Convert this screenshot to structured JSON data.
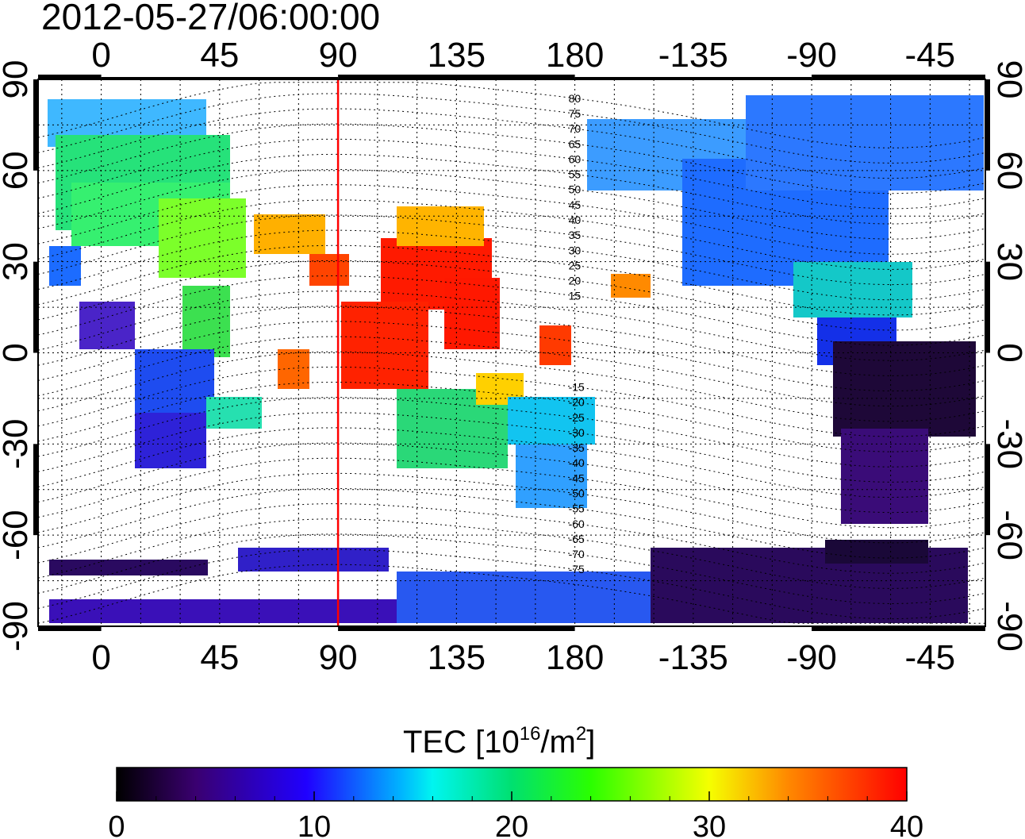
{
  "title": "2012-05-27/06:00:00",
  "map": {
    "projection": "equirectangular",
    "lon_range": [
      -24,
      336
    ],
    "lat_range": [
      -90,
      90
    ],
    "x_ticks": [
      {
        "lon": 0,
        "label": "0"
      },
      {
        "lon": 45,
        "label": "45"
      },
      {
        "lon": 90,
        "label": "90"
      },
      {
        "lon": 135,
        "label": "135"
      },
      {
        "lon": 180,
        "label": "180"
      },
      {
        "lon": 225,
        "label": "-135"
      },
      {
        "lon": 270,
        "label": "-90"
      },
      {
        "lon": 315,
        "label": "-45"
      }
    ],
    "y_ticks": [
      {
        "lat": 90,
        "label": "90"
      },
      {
        "lat": 60,
        "label": "60"
      },
      {
        "lat": 30,
        "label": "30"
      },
      {
        "lat": 0,
        "label": "0"
      },
      {
        "lat": -30,
        "label": "-30"
      },
      {
        "lat": -60,
        "label": "-60"
      },
      {
        "lat": -90,
        "label": "-90"
      }
    ],
    "grid": "dotted, 15 degree",
    "marker_line_lon": 90,
    "marker_line_color": "#ff0000",
    "magnetic_latitude_labels": [
      "80",
      "75",
      "70",
      "65",
      "60",
      "55",
      "50",
      "45",
      "40",
      "35",
      "30",
      "25",
      "20",
      "15",
      "-15",
      "-20",
      "-25",
      "-30",
      "-35",
      "-40",
      "-45",
      "-50",
      "-55",
      "-60",
      "-65",
      "-70",
      "-75"
    ]
  },
  "colorbar": {
    "title": "TEC  [10",
    "title_sup": "16",
    "title_unit": "/m",
    "title_unit_sup": "2",
    "title_end": "]",
    "min": 0,
    "max": 40,
    "ticks": [
      {
        "value": 0,
        "label": "0"
      },
      {
        "value": 10,
        "label": "10"
      },
      {
        "value": 20,
        "label": "20"
      },
      {
        "value": 30,
        "label": "30"
      },
      {
        "value": 40,
        "label": "40"
      }
    ],
    "stops": [
      "#000000",
      "#3a0070",
      "#2000ff",
      "#00b4ff",
      "#00f5f0",
      "#00e070",
      "#2aff00",
      "#e8ff00",
      "#ff8800",
      "#ff0000"
    ]
  }
}
